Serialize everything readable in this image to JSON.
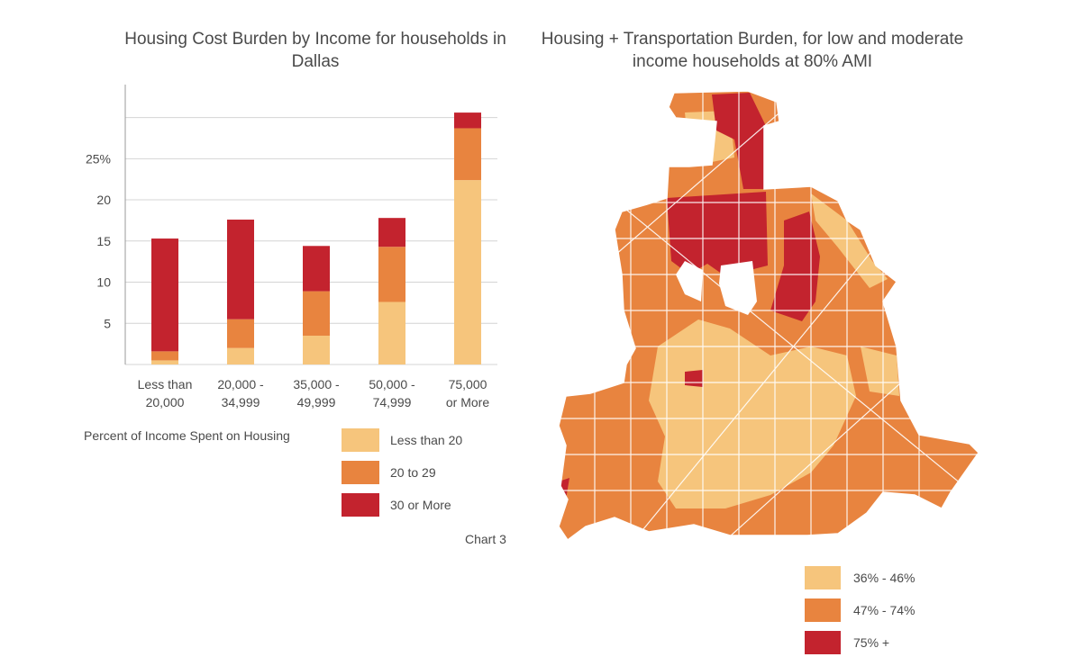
{
  "colors": {
    "low": "#f6c57c",
    "mid": "#e8843f",
    "high": "#c3232e",
    "grid": "#d4d4d4",
    "axis": "#9a9a9a"
  },
  "chart_data": [
    {
      "type": "bar",
      "stacked": true,
      "title": "Housing Cost Burden by Income for households in Dallas",
      "categories": [
        "Less than 20,000",
        "20,000 - 34,999",
        "35,000 - 49,999",
        "50,000 - 74,999",
        "75,000 or More"
      ],
      "category_lines": [
        [
          "Less than",
          "20,000"
        ],
        [
          "20,000 -",
          "34,999"
        ],
        [
          "35,000 -",
          "49,999"
        ],
        [
          "50,000 -",
          "74,999"
        ],
        [
          "75,000",
          "or More"
        ]
      ],
      "series": [
        {
          "name": "Less than 20",
          "values": [
            0.5,
            2.0,
            3.5,
            7.6,
            22.4
          ]
        },
        {
          "name": "20 to 29",
          "values": [
            1.1,
            3.5,
            5.4,
            6.7,
            6.3
          ]
        },
        {
          "name": "30 or More",
          "values": [
            13.7,
            12.1,
            5.5,
            3.5,
            1.9
          ]
        }
      ],
      "ylim": [
        0,
        34
      ],
      "yticks": [
        5,
        10,
        15,
        20,
        25
      ],
      "ytick_labels": [
        "5",
        "10",
        "15",
        "20",
        "25%"
      ],
      "grid": true,
      "legend_title": "Percent of Income Spent on Housing",
      "legend": [
        "Less than 20",
        "20 to 29",
        "30 or More"
      ]
    },
    {
      "type": "choropleth",
      "title": "Housing + Transportation Burden, for low and moderate income households at 80% AMI",
      "legend": [
        "36% - 46%",
        "47% - 74%",
        "75% +"
      ]
    }
  ],
  "caption": "Chart  3"
}
